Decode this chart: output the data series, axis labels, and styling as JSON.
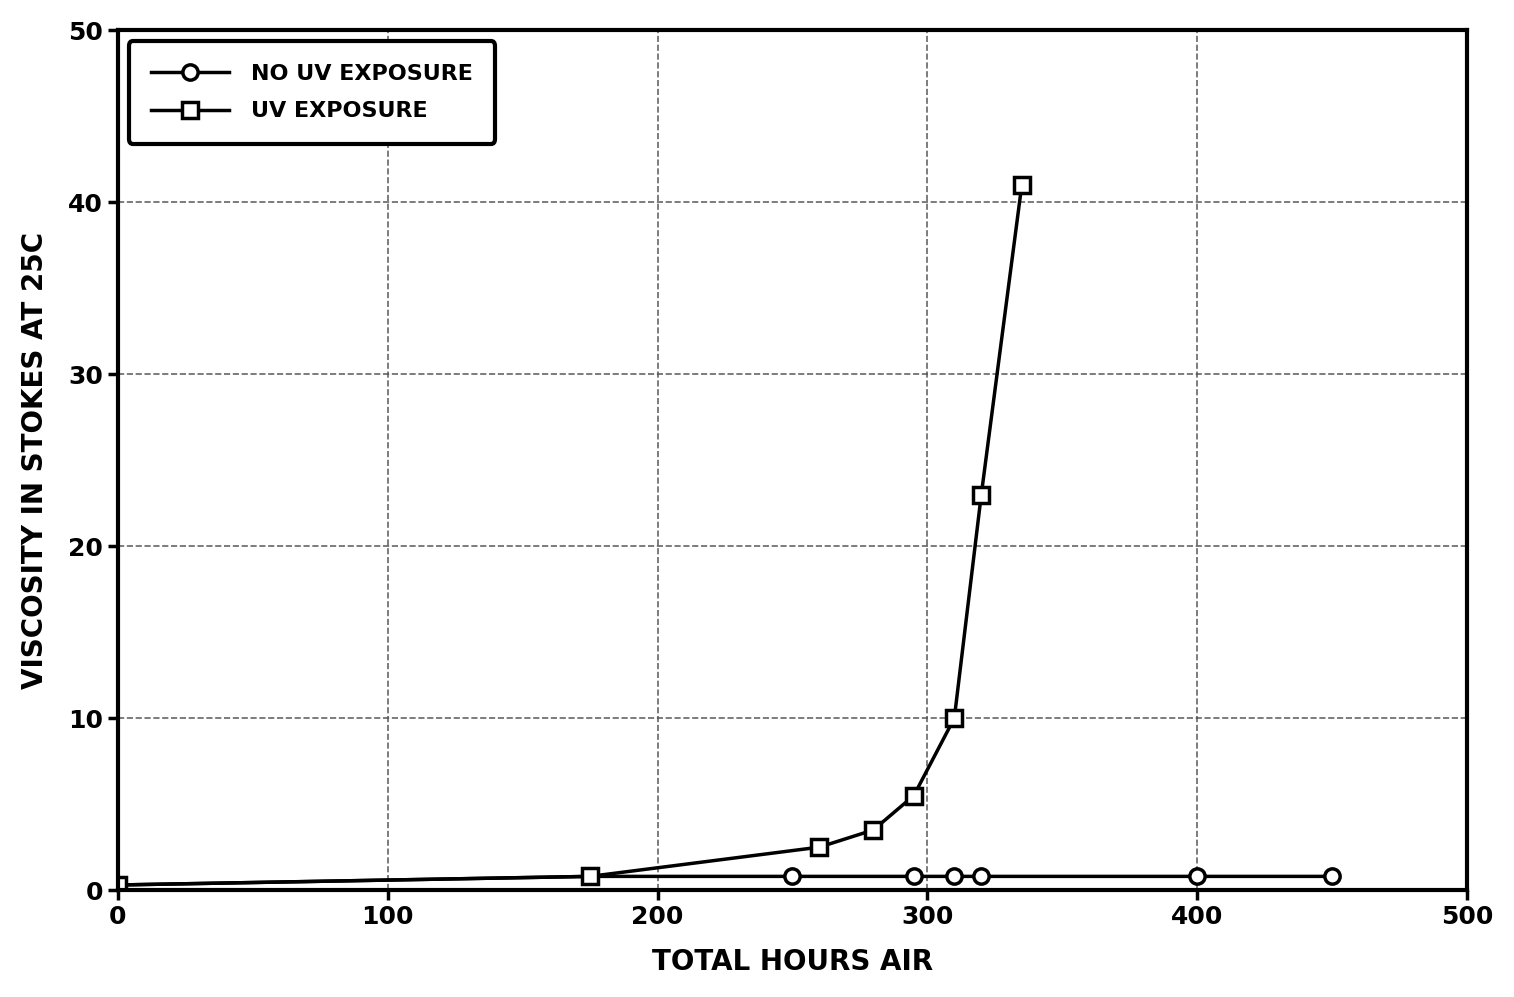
{
  "no_uv_x": [
    0,
    175,
    250,
    295,
    310,
    320,
    400,
    450
  ],
  "no_uv_y": [
    0.3,
    0.8,
    0.8,
    0.8,
    0.8,
    0.8,
    0.8,
    0.8
  ],
  "uv_x": [
    0,
    175,
    260,
    280,
    295,
    310,
    320,
    335
  ],
  "uv_y": [
    0.3,
    0.8,
    2.5,
    3.5,
    5.5,
    10.0,
    23.0,
    41.0
  ],
  "xlabel": "TOTAL HOURS AIR",
  "ylabel": "VISCOSITY IN STOKES AT 25C",
  "xlim": [
    0,
    500
  ],
  "ylim": [
    0,
    50
  ],
  "xticks": [
    0,
    100,
    200,
    300,
    400,
    500
  ],
  "yticks": [
    0,
    10,
    20,
    30,
    40,
    50
  ],
  "legend_no_uv": "NO UV EXPOSURE",
  "legend_uv": "UV EXPOSURE",
  "line_color": "#000000",
  "background_color": "#ffffff",
  "grid_color": "#555555"
}
